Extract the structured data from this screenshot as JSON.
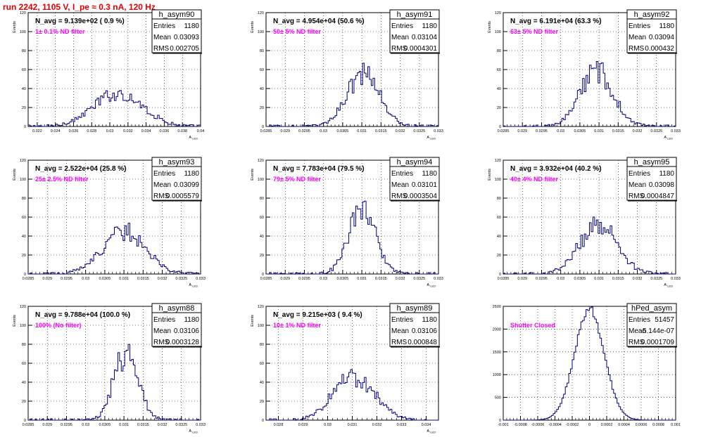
{
  "page_title": "run 2242,  1105 V, I_pe ≈ 0.3 nA, 120 Hz",
  "chart_data": [
    {
      "type": "histogram",
      "name": "h_asym90",
      "stats": {
        "Entries": "1180",
        "Mean": "0.03093",
        "RMS": "0.002705"
      },
      "n_avg_label": "N_avg = 9.139e+02 ( 0.9 %)",
      "filter_label": "1± 0.1% ND filter",
      "xlabel": "A_{LED}",
      "ylabel": "Events",
      "xlim": [
        0.021,
        0.04
      ],
      "ylim": [
        0,
        120
      ],
      "x_ticks": [
        "0.022",
        "0.024",
        "0.026",
        "0.028",
        "0.03",
        "0.032",
        "0.034",
        "0.036",
        "0.038",
        "0.04"
      ],
      "y_ticks": [
        "0",
        "20",
        "40",
        "60",
        "80",
        "100",
        "120"
      ],
      "mean": 0.03093,
      "rms": 0.002705,
      "peak": 35,
      "entries": 1180
    },
    {
      "type": "histogram",
      "name": "h_asym91",
      "stats": {
        "Entries": "1180",
        "Mean": "0.03104",
        "RMS": "0.0004301"
      },
      "n_avg_label": "N_avg = 4.954e+04 (50.6 %)",
      "filter_label": "50± 5% ND filter",
      "xlabel": "A_{LED}",
      "ylabel": "Events",
      "xlim": [
        0.0285,
        0.033
      ],
      "ylim": [
        0,
        120
      ],
      "x_ticks": [
        "0.0285",
        "0.029",
        "0.0295",
        "0.03",
        "0.0305",
        "0.031",
        "0.0315",
        "0.032",
        "0.0325",
        "0.033"
      ],
      "y_ticks": [
        "0",
        "20",
        "40",
        "60",
        "80",
        "100",
        "120"
      ],
      "mean": 0.03104,
      "rms": 0.0004301,
      "peak": 55,
      "entries": 1180
    },
    {
      "type": "histogram",
      "name": "h_asym92",
      "stats": {
        "Entries": "1180",
        "Mean": "0.03094",
        "RMS": "0.000432"
      },
      "n_avg_label": "N_avg = 6.191e+04 (63.3 %)",
      "filter_label": "63± 5% ND filter",
      "xlabel": "A_{LED}",
      "ylabel": "Events",
      "xlim": [
        0.0285,
        0.033
      ],
      "ylim": [
        0,
        120
      ],
      "x_ticks": [
        "0.0285",
        "0.029",
        "0.0295",
        "0.03",
        "0.0305",
        "0.031",
        "0.0315",
        "0.032",
        "0.0325",
        "0.033"
      ],
      "y_ticks": [
        "0",
        "20",
        "40",
        "60",
        "80",
        "100",
        "120"
      ],
      "mean": 0.03094,
      "rms": 0.000432,
      "peak": 58,
      "entries": 1180
    },
    {
      "type": "histogram",
      "name": "h_asym93",
      "stats": {
        "Entries": "1180",
        "Mean": "0.03099",
        "RMS": "0.0005579"
      },
      "n_avg_label": "N_avg = 2.522e+04 (25.8 %)",
      "filter_label": "25± 2.5% ND filter",
      "xlabel": "A_{LED}",
      "ylabel": "Events",
      "xlim": [
        0.0285,
        0.033
      ],
      "ylim": [
        0,
        120
      ],
      "x_ticks": [
        "0.0285",
        "0.029",
        "0.0295",
        "0.03",
        "0.0305",
        "0.031",
        "0.0315",
        "0.032",
        "0.0325",
        "0.033"
      ],
      "y_ticks": [
        "0",
        "20",
        "40",
        "60",
        "80",
        "100",
        "120"
      ],
      "mean": 0.03099,
      "rms": 0.0005579,
      "peak": 45,
      "entries": 1180
    },
    {
      "type": "histogram",
      "name": "h_asym94",
      "stats": {
        "Entries": "1180",
        "Mean": "0.03101",
        "RMS": "0.0003504"
      },
      "n_avg_label": "N_avg = 7.783e+04 (79.5 %)",
      "filter_label": "79± 5% ND filter",
      "xlabel": "A_{LED}",
      "ylabel": "Events",
      "xlim": [
        0.0285,
        0.033
      ],
      "ylim": [
        0,
        120
      ],
      "x_ticks": [
        "0.0285",
        "0.029",
        "0.0295",
        "0.03",
        "0.0305",
        "0.031",
        "0.0315",
        "0.032",
        "0.0325",
        "0.033"
      ],
      "y_ticks": [
        "0",
        "20",
        "40",
        "60",
        "80",
        "100",
        "120"
      ],
      "mean": 0.03101,
      "rms": 0.0003504,
      "peak": 70,
      "entries": 1180
    },
    {
      "type": "histogram",
      "name": "h_asym95",
      "stats": {
        "Entries": "1180",
        "Mean": "0.03098",
        "RMS": "0.0004847"
      },
      "n_avg_label": "N_avg = 3.932e+04 (40.2 %)",
      "filter_label": "40± 4% ND filter",
      "xlabel": "A_{LED}",
      "ylabel": "Events",
      "xlim": [
        0.0285,
        0.033
      ],
      "ylim": [
        0,
        120
      ],
      "x_ticks": [
        "0.0285",
        "0.029",
        "0.0295",
        "0.03",
        "0.0305",
        "0.031",
        "0.0315",
        "0.032",
        "0.0325",
        "0.033"
      ],
      "y_ticks": [
        "0",
        "20",
        "40",
        "60",
        "80",
        "100",
        "120"
      ],
      "mean": 0.03098,
      "rms": 0.0004847,
      "peak": 52,
      "entries": 1180
    },
    {
      "type": "histogram",
      "name": "h_asym88",
      "stats": {
        "Entries": "1180",
        "Mean": "0.03106",
        "RMS": "0.0003128"
      },
      "n_avg_label": "N_avg = 9.788e+04 (100.0 %)",
      "filter_label": "100% (No filter)",
      "xlabel": "A_{LED}",
      "ylabel": "Events",
      "xlim": [
        0.0285,
        0.033
      ],
      "ylim": [
        0,
        120
      ],
      "x_ticks": [
        "0.0285",
        "0.029",
        "0.0295",
        "0.03",
        "0.0305",
        "0.031",
        "0.0315",
        "0.032",
        "0.0325",
        "0.033"
      ],
      "y_ticks": [
        "0",
        "20",
        "40",
        "60",
        "80",
        "100",
        "120"
      ],
      "mean": 0.03106,
      "rms": 0.0003128,
      "peak": 72,
      "entries": 1180
    },
    {
      "type": "histogram",
      "name": "h_asym89",
      "stats": {
        "Entries": "1180",
        "Mean": "0.03106",
        "RMS": "0.000848"
      },
      "n_avg_label": "N_avg = 9.215e+03 ( 9.4 %)",
      "filter_label": "10± 1% ND filter",
      "xlabel": "A_{LED}",
      "ylabel": "Events",
      "xlim": [
        0.0275,
        0.0345
      ],
      "ylim": [
        0,
        120
      ],
      "x_ticks": [
        "0.028",
        "0.029",
        "0.03",
        "0.031",
        "0.032",
        "0.033",
        "0.034"
      ],
      "x_tick_values": [
        0.028,
        0.029,
        0.03,
        0.031,
        0.032,
        0.033,
        0.034
      ],
      "y_ticks": [
        "0",
        "20",
        "40",
        "60",
        "80",
        "100",
        "120"
      ],
      "mean": 0.03106,
      "rms": 0.000848,
      "peak": 45,
      "entries": 1180
    },
    {
      "type": "histogram",
      "name": "hPed_asym",
      "stats": {
        "Entries": "51457",
        "Mean": "-5.144e-07",
        "RMS": "0.0001709"
      },
      "n_avg_label": "",
      "filter_label": "Shutter Closed",
      "xlabel": "",
      "ylabel": "",
      "xlim": [
        -0.001,
        0.001
      ],
      "ylim": [
        0,
        2500
      ],
      "x_ticks": [
        "-0.001",
        "-0.0008",
        "-0.0006",
        "-0.0004",
        "-0.0002",
        "0",
        "0.0002",
        "0.0004",
        "0.0006",
        "0.0008",
        "0.001"
      ],
      "y_ticks": [
        "0",
        "500",
        "1000",
        "1500",
        "2000",
        "2500"
      ],
      "mean": -5.144e-07,
      "rms": 0.0001709,
      "peak": 2450,
      "entries": 51457
    }
  ]
}
